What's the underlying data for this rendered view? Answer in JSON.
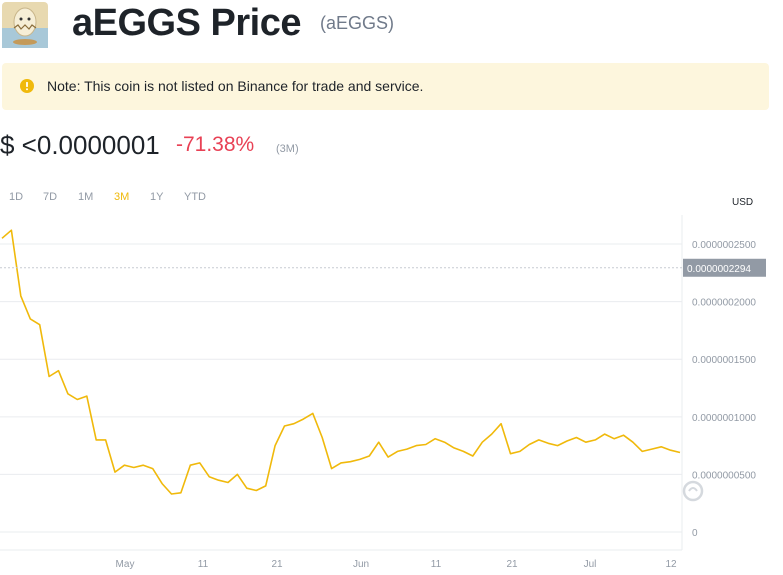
{
  "header": {
    "title": "aEGGS Price",
    "symbol": "(aEGGS)",
    "logo_icon": "egg-hatching-icon"
  },
  "notice": {
    "icon": "warning-circle-icon",
    "text": "Note: This coin is not listed on Binance for trade and service."
  },
  "price": {
    "value": "$ <0.0000001",
    "change": "-71.38%",
    "period": "(3M)"
  },
  "tabs": [
    {
      "label": "1D",
      "active": false
    },
    {
      "label": "7D",
      "active": false
    },
    {
      "label": "1M",
      "active": false
    },
    {
      "label": "3M",
      "active": true
    },
    {
      "label": "1Y",
      "active": false
    },
    {
      "label": "YTD",
      "active": false
    }
  ],
  "currency": "USD",
  "colors": {
    "accent": "#f0b90b",
    "negative": "#e84155",
    "line": "#f0b90b",
    "grid": "#eaecef",
    "current_tag": "#929aa5"
  },
  "chart_data": {
    "type": "line",
    "y_ticks": [
      "0",
      "0.0000000500",
      "0.0000001000",
      "0.0000001500",
      "0.0000002000",
      "0.0000002500"
    ],
    "x_ticks": [
      "May",
      "11",
      "21",
      "Jun",
      "11",
      "21",
      "Jul",
      "12"
    ],
    "current_value_label": "0.0000002294",
    "ylim": [
      0,
      2.7e-07
    ],
    "series": [
      {
        "values": [
          2.55e-07,
          2.62e-07,
          2.05e-07,
          1.85e-07,
          1.8e-07,
          1.35e-07,
          1.4e-07,
          1.2e-07,
          1.15e-07,
          1.18e-07,
          8e-08,
          8e-08,
          5.2e-08,
          5.8e-08,
          5.6e-08,
          5.8e-08,
          5.5e-08,
          4.2e-08,
          3.3e-08,
          3.4e-08,
          5.8e-08,
          6e-08,
          4.8e-08,
          4.5e-08,
          4.3e-08,
          5e-08,
          3.8e-08,
          3.6e-08,
          4e-08,
          7.5e-08,
          9.2e-08,
          9.4e-08,
          9.8e-08,
          1.03e-07,
          8.2e-08,
          5.5e-08,
          6e-08,
          6.1e-08,
          6.3e-08,
          6.6e-08,
          7.8e-08,
          6.5e-08,
          7e-08,
          7.2e-08,
          7.5e-08,
          7.6e-08,
          8.1e-08,
          7.8e-08,
          7.3e-08,
          7e-08,
          6.6e-08,
          7.8e-08,
          8.5e-08,
          9.4e-08,
          6.8e-08,
          7e-08,
          7.6e-08,
          8e-08,
          7.7e-08,
          7.5e-08,
          7.9e-08,
          8.2e-08,
          7.8e-08,
          8e-08,
          8.5e-08,
          8.1e-08,
          8.4e-08,
          7.8e-08,
          7e-08,
          7.2e-08,
          7.4e-08,
          7.1e-08,
          6.9e-08
        ]
      }
    ]
  }
}
